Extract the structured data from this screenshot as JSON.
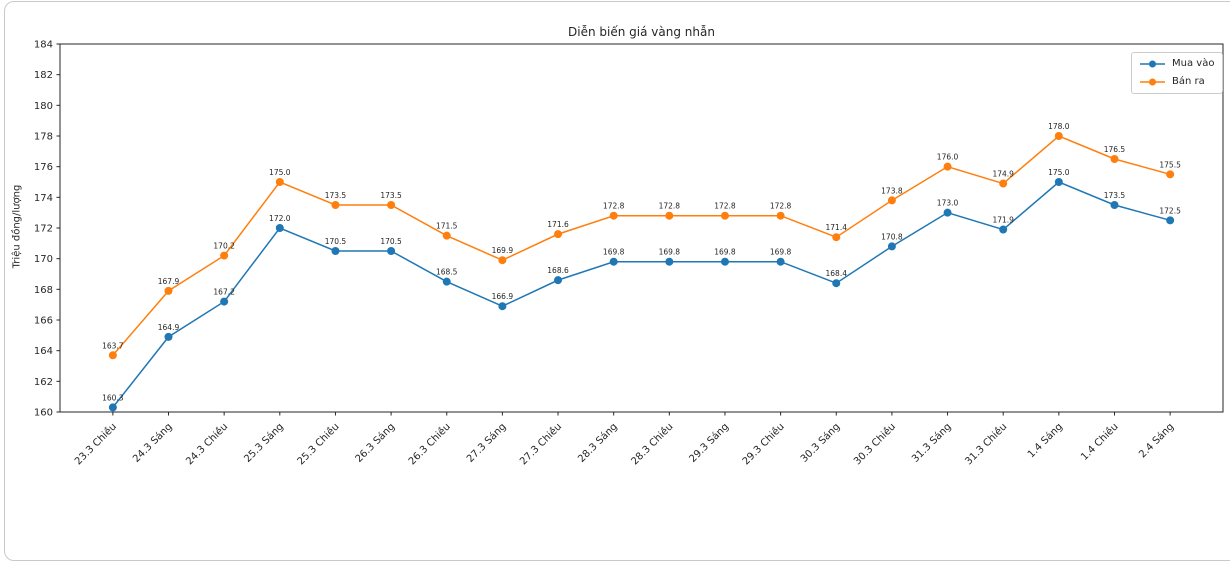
{
  "chart_data": {
    "type": "line",
    "title": "Diễn biến giá vàng nhẫn",
    "xlabel": "",
    "ylabel": "Triệu đồng/lượng",
    "ylim": [
      160,
      184
    ],
    "ytick_step": 2,
    "grid": false,
    "legend_position": "upper right",
    "point_labels": true,
    "categories": [
      "23.3 Chiều",
      "24.3 Sáng",
      "24.3 Chiều",
      "25.3 Sáng",
      "25.3 Chiều",
      "26.3 Sáng",
      "26.3 Chiều",
      "27.3 Sáng",
      "27.3 Chiều",
      "28.3 Sáng",
      "28.3 Chiều",
      "29.3 Sáng",
      "29.3 Chiều",
      "30.3 Sáng",
      "30.3 Chiều",
      "31.3 Sáng",
      "31.3 Chiều",
      "1.4 Sáng",
      "1.4 Chiều",
      "2.4 Sáng"
    ],
    "series": [
      {
        "name": "Mua vào",
        "color": "#1f77b4",
        "values": [
          160.3,
          164.9,
          167.2,
          172.0,
          170.5,
          170.5,
          168.5,
          166.9,
          168.6,
          169.8,
          169.8,
          169.8,
          169.8,
          168.4,
          170.8,
          173.0,
          171.9,
          175.0,
          173.5,
          172.5
        ]
      },
      {
        "name": "Bán ra",
        "color": "#ff7f0e",
        "values": [
          163.7,
          167.9,
          170.2,
          175.0,
          173.5,
          173.5,
          171.5,
          169.9,
          171.6,
          172.8,
          172.8,
          172.8,
          172.8,
          171.4,
          173.8,
          176.0,
          174.9,
          178.0,
          176.5,
          175.5
        ]
      }
    ],
    "axis_color": "#262626",
    "label_color": "#262626"
  }
}
